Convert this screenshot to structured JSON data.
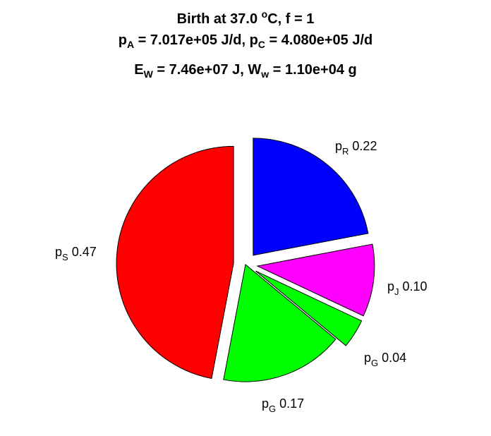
{
  "title": {
    "line1": {
      "pre": "Birth at 37.0 ",
      "sup": "o",
      "post": "C, f = 1"
    },
    "line2": {
      "a_sym": "p",
      "a_sub": "A",
      "a_val": " = 7.017e+05 J/d, ",
      "c_sym": "p",
      "c_sub": "C",
      "c_val": " = 4.080e+05 J/d"
    },
    "line3": {
      "e_sym": "E",
      "e_sub": "W",
      "e_val": " = 7.46e+07 J, ",
      "w_sym": "W",
      "w_sub": "w",
      "w_val": " = 1.10e+04 g"
    }
  },
  "chart_data": {
    "type": "pie",
    "direction": "clockwise",
    "start": "top",
    "slices": [
      {
        "sym": "p",
        "sub": "R",
        "value": "0.22",
        "fraction": 0.22,
        "color": "#0000ff",
        "exploded": true
      },
      {
        "sym": "p",
        "sub": "J",
        "value": "0.10",
        "fraction": 0.1,
        "color": "#ff00ff",
        "exploded": true
      },
      {
        "sym": "p",
        "sub": "G",
        "value": "0.04",
        "fraction": 0.04,
        "color": "#00ff00",
        "exploded": true
      },
      {
        "sym": "p",
        "sub": "G",
        "value": "0.17",
        "fraction": 0.17,
        "color": "#00ff00",
        "exploded": false
      },
      {
        "sym": "p",
        "sub": "S",
        "value": "0.47",
        "fraction": 0.47,
        "color": "#ff0000",
        "exploded": true
      }
    ]
  }
}
